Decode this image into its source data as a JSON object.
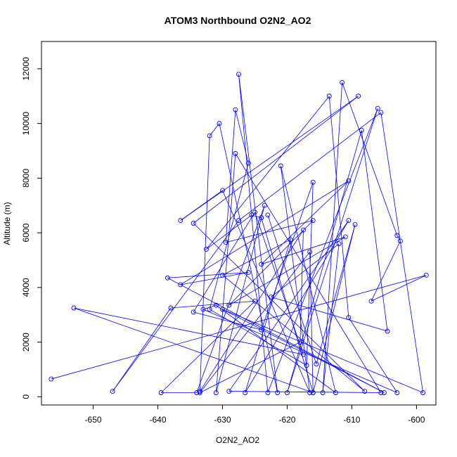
{
  "chart_data": {
    "type": "line",
    "title": "ATOM3 Northbound O2N2_AO2",
    "xlabel": "O2N2_AO2",
    "ylabel": "Altitude (m)",
    "xlim": [
      -658,
      -597
    ],
    "ylim": [
      -300,
      13000
    ],
    "xticks": [
      -650,
      -640,
      -630,
      -620,
      -610,
      -600
    ],
    "yticks": [
      0,
      2000,
      4000,
      6000,
      8000,
      10000,
      12000
    ],
    "grid": false,
    "legend": "none",
    "series_color": "#0000ff",
    "markers": "open-circle",
    "points": [
      [
        -656.5,
        650
      ],
      [
        -598.5,
        4450
      ],
      [
        -607.0,
        3500
      ],
      [
        -602.5,
        5700
      ],
      [
        -603.0,
        5900
      ],
      [
        -611.5,
        11500
      ],
      [
        -614.5,
        150
      ],
      [
        -612.0,
        5600
      ],
      [
        -622.5,
        3650
      ],
      [
        -604.5,
        2400
      ],
      [
        -608.5,
        9750
      ],
      [
        -620.0,
        150
      ],
      [
        -606.0,
        10550
      ],
      [
        -623.0,
        150
      ],
      [
        -627.5,
        11800
      ],
      [
        -621.5,
        150
      ],
      [
        -630.5,
        10000
      ],
      [
        -632.0,
        9550
      ],
      [
        -633.5,
        200
      ],
      [
        -617.5,
        6100
      ],
      [
        -618.0,
        2000
      ],
      [
        -633.5,
        150
      ],
      [
        -616.5,
        5300
      ],
      [
        -616.0,
        150
      ],
      [
        -624.0,
        6550
      ],
      [
        -625.5,
        6650
      ],
      [
        -632.5,
        5400
      ],
      [
        -613.5,
        11000
      ],
      [
        -610.5,
        2900
      ],
      [
        -603.0,
        150
      ],
      [
        -633.0,
        3200
      ],
      [
        -631.0,
        3350
      ],
      [
        -612.5,
        150
      ],
      [
        -621.0,
        8450
      ],
      [
        -616.5,
        150
      ],
      [
        -630.0,
        7550
      ],
      [
        -636.5,
        6450
      ],
      [
        -609.0,
        11000
      ],
      [
        -634.5,
        6350
      ],
      [
        -608.0,
        200
      ],
      [
        -630.0,
        4450
      ],
      [
        -619.5,
        5750
      ],
      [
        -626.5,
        150
      ],
      [
        -610.5,
        6450
      ],
      [
        -629.0,
        200
      ],
      [
        -605.5,
        150
      ],
      [
        -628.0,
        8900
      ],
      [
        -631.0,
        150
      ],
      [
        -623.5,
        7000
      ],
      [
        -634.0,
        150
      ],
      [
        -639.5,
        150
      ],
      [
        -625.0,
        3500
      ],
      [
        -638.0,
        3250
      ],
      [
        -647.0,
        200
      ],
      [
        -627.5,
        6450
      ],
      [
        -605.5,
        10400
      ],
      [
        -599.0,
        150
      ],
      [
        -630.0,
        3200
      ],
      [
        -605.0,
        150
      ],
      [
        -638.5,
        4350
      ],
      [
        -626.0,
        4550
      ],
      [
        -636.5,
        4100
      ],
      [
        -610.5,
        7900
      ],
      [
        -624.0,
        4850
      ],
      [
        -611.0,
        5850
      ],
      [
        -629.0,
        3350
      ],
      [
        -616.0,
        6450
      ],
      [
        -629.5,
        5650
      ],
      [
        -628.0,
        10500
      ],
      [
        -626.0,
        8550
      ],
      [
        -632.0,
        3200
      ],
      [
        -617.0,
        1150
      ],
      [
        -616.0,
        7850
      ],
      [
        -624.0,
        2450
      ],
      [
        -634.5,
        3100
      ],
      [
        -625.0,
        6750
      ],
      [
        -617.5,
        1550
      ],
      [
        -653.0,
        3250
      ],
      [
        -616.0,
        150
      ],
      [
        -609.5,
        6300
      ],
      [
        -615.5,
        1200
      ],
      [
        -623.0,
        6650
      ]
    ]
  }
}
